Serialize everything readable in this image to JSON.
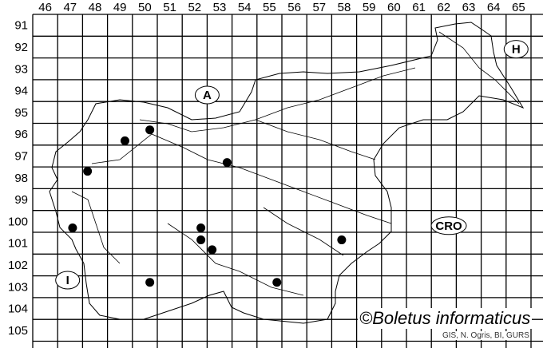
{
  "map": {
    "columns": [
      "46",
      "47",
      "48",
      "49",
      "50",
      "51",
      "52",
      "53",
      "54",
      "55",
      "56",
      "57",
      "58",
      "59",
      "60",
      "61",
      "62",
      "63",
      "64",
      "65"
    ],
    "rows": [
      "91",
      "92",
      "93",
      "94",
      "95",
      "96",
      "97",
      "98",
      "99",
      "100",
      "101",
      "102",
      "103",
      "104",
      "105"
    ],
    "regions": [
      {
        "label": "A",
        "col": 52.5,
        "row": 94.2
      },
      {
        "label": "H",
        "col": 64.9,
        "row": 92.1
      },
      {
        "label": "CRO",
        "col": 62.2,
        "row": 100.2
      },
      {
        "label": "I",
        "col": 46.9,
        "row": 102.7
      }
    ],
    "records": [
      {
        "col": 50.2,
        "row": 95.8
      },
      {
        "col": 49.2,
        "row": 96.3
      },
      {
        "col": 47.7,
        "row": 97.7
      },
      {
        "col": 53.3,
        "row": 97.3
      },
      {
        "col": 47.1,
        "row": 100.3
      },
      {
        "col": 52.25,
        "row": 100.3
      },
      {
        "col": 52.25,
        "row": 100.85
      },
      {
        "col": 52.7,
        "row": 101.3
      },
      {
        "col": 57.9,
        "row": 100.85
      },
      {
        "col": 50.2,
        "row": 102.8
      },
      {
        "col": 55.3,
        "row": 102.8
      }
    ]
  },
  "credit": "©Boletus informaticus",
  "source": "GIS, N. Ogris, BI, GURS"
}
